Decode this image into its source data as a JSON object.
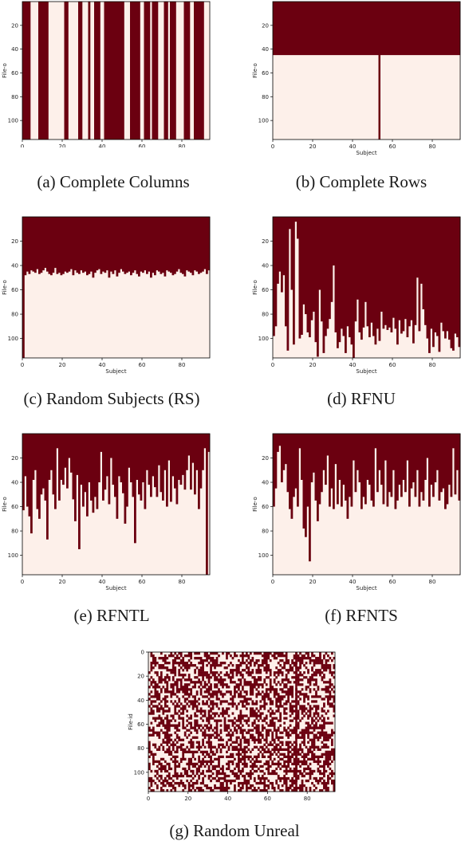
{
  "colors": {
    "filled": "#6b0010",
    "empty": "#fdf0ea"
  },
  "chart_data": [
    {
      "type": "heatmap",
      "id": "a",
      "caption": "(a) Complete Columns",
      "xlabel": "",
      "ylabel": "File-o",
      "xlim": [
        0,
        94
      ],
      "ylim": [
        0,
        116
      ],
      "xticks": [
        0,
        20,
        40,
        60,
        80
      ],
      "yticks": [
        20,
        40,
        60,
        80,
        100
      ],
      "filled_columns": [
        0,
        1,
        2,
        3,
        8,
        9,
        10,
        11,
        12,
        21,
        22,
        28,
        29,
        33,
        36,
        37,
        38,
        41,
        42,
        43,
        44,
        45,
        46,
        47,
        48,
        49,
        50,
        54,
        55,
        56,
        57,
        58,
        61,
        62,
        63,
        65,
        66,
        67,
        71,
        72,
        74,
        75,
        76,
        81,
        82,
        83,
        86,
        87,
        88,
        89,
        90
      ]
    },
    {
      "type": "heatmap",
      "id": "b",
      "caption": "(b) Complete Rows",
      "xlabel": "Subject",
      "ylabel": "File-o",
      "xlim": [
        0,
        94
      ],
      "ylim": [
        0,
        116
      ],
      "xticks": [
        0,
        20,
        40,
        60,
        80
      ],
      "yticks": [
        20,
        40,
        60,
        80,
        100
      ],
      "filled_rows_to": 45,
      "full_columns": [
        53
      ]
    },
    {
      "type": "heatmap",
      "id": "c",
      "caption": "(c) Random Subjects (RS)",
      "xlabel": "Subject",
      "ylabel": "File-o",
      "xlim": [
        0,
        94
      ],
      "ylim": [
        0,
        116
      ],
      "xticks": [
        0,
        20,
        40,
        60,
        80
      ],
      "yticks": [
        20,
        40,
        60,
        80,
        100
      ],
      "column_heights": [
        116,
        48,
        45,
        47,
        44,
        45,
        46,
        43,
        47,
        46,
        44,
        42,
        45,
        47,
        48,
        46,
        42,
        47,
        46,
        48,
        47,
        45,
        46,
        45,
        43,
        48,
        44,
        46,
        47,
        44,
        46,
        45,
        48,
        47,
        45,
        50,
        46,
        44,
        43,
        47,
        45,
        46,
        44,
        50,
        45,
        47,
        44,
        49,
        46,
        43,
        45,
        47,
        46,
        45,
        48,
        46,
        44,
        47,
        49,
        45,
        46,
        44,
        47,
        45,
        50,
        46,
        48,
        44,
        45,
        47,
        46,
        49,
        44,
        45,
        46,
        48,
        47,
        45,
        43,
        46,
        47,
        49,
        44,
        45,
        46,
        48,
        44,
        45,
        47,
        46,
        45,
        43,
        47,
        44
      ]
    },
    {
      "type": "heatmap",
      "id": "d",
      "caption": "(d) RFNU",
      "xlabel": "Subject",
      "ylabel": "File-o",
      "xlim": [
        0,
        94
      ],
      "ylim": [
        0,
        116
      ],
      "xticks": [
        0,
        20,
        40,
        60,
        80
      ],
      "yticks": [
        20,
        40,
        60,
        80,
        100
      ],
      "column_heights": [
        98,
        90,
        55,
        45,
        62,
        48,
        90,
        110,
        10,
        60,
        105,
        4,
        18,
        100,
        97,
        72,
        80,
        95,
        99,
        85,
        78,
        103,
        115,
        60,
        86,
        112,
        98,
        92,
        84,
        70,
        40,
        95,
        108,
        103,
        92,
        98,
        112,
        90,
        99,
        105,
        116,
        86,
        68,
        95,
        101,
        91,
        70,
        90,
        99,
        87,
        98,
        105,
        92,
        102,
        78,
        92,
        89,
        93,
        91,
        95,
        83,
        92,
        105,
        85,
        96,
        94,
        84,
        99,
        90,
        85,
        104,
        89,
        50,
        94,
        55,
        76,
        89,
        100,
        112,
        92,
        107,
        95,
        98,
        111,
        87,
        94,
        100,
        94,
        101,
        108,
        110,
        96,
        99,
        107
      ]
    },
    {
      "type": "heatmap",
      "id": "e",
      "caption": "(e) RFNTL",
      "xlabel": "Subject",
      "ylabel": "File-o",
      "xlim": [
        0,
        94
      ],
      "ylim": [
        0,
        116
      ],
      "xticks": [
        0,
        20,
        40,
        60,
        80
      ],
      "yticks": [
        20,
        40,
        60,
        80,
        100
      ],
      "column_heights": [
        63,
        35,
        60,
        68,
        82,
        38,
        30,
        62,
        70,
        50,
        45,
        55,
        87,
        38,
        30,
        50,
        62,
        12,
        55,
        38,
        42,
        28,
        45,
        20,
        32,
        54,
        72,
        34,
        95,
        42,
        60,
        48,
        68,
        40,
        55,
        65,
        52,
        62,
        40,
        15,
        55,
        46,
        35,
        58,
        20,
        42,
        52,
        70,
        35,
        40,
        49,
        74,
        60,
        28,
        40,
        52,
        90,
        38,
        50,
        55,
        40,
        62,
        30,
        42,
        52,
        35,
        44,
        52,
        26,
        48,
        55,
        30,
        60,
        22,
        56,
        35,
        45,
        58,
        38,
        42,
        34,
        46,
        30,
        18,
        46,
        24,
        50,
        30,
        62,
        45,
        30,
        12,
        116,
        15
      ]
    },
    {
      "type": "heatmap",
      "id": "f",
      "caption": "(f) RFNTS",
      "xlabel": "Subject",
      "ylabel": "File-o",
      "xlim": [
        0,
        94
      ],
      "ylim": [
        0,
        116
      ],
      "xticks": [
        0,
        20,
        40,
        60,
        80
      ],
      "yticks": [
        20,
        40,
        60,
        80,
        100
      ],
      "column_heights": [
        60,
        45,
        15,
        10,
        40,
        30,
        25,
        48,
        62,
        70,
        52,
        45,
        60,
        12,
        38,
        78,
        85,
        60,
        105,
        40,
        32,
        55,
        72,
        58,
        48,
        30,
        42,
        18,
        60,
        45,
        62,
        25,
        58,
        38,
        60,
        42,
        55,
        70,
        52,
        60,
        22,
        48,
        30,
        40,
        62,
        52,
        58,
        38,
        42,
        55,
        60,
        12,
        48,
        30,
        42,
        58,
        22,
        60,
        48,
        52,
        30,
        62,
        55,
        42,
        52,
        38,
        48,
        22,
        60,
        45,
        40,
        52,
        30,
        60,
        48,
        55,
        38,
        20,
        60,
        42,
        52,
        40,
        30,
        55,
        48,
        45,
        62,
        58,
        42,
        52,
        12,
        50,
        30,
        55
      ]
    },
    {
      "type": "heatmap",
      "id": "g",
      "caption": "(g) Random Unreal",
      "xlabel": "Subject",
      "ylabel": "File-id",
      "xlim": [
        0,
        94
      ],
      "ylim": [
        0,
        116
      ],
      "xticks": [
        0,
        20,
        40,
        60,
        80
      ],
      "yticks": [
        0,
        20,
        40,
        60,
        80,
        100
      ],
      "fill_fraction": 0.5,
      "full_columns": [
        74
      ]
    }
  ]
}
